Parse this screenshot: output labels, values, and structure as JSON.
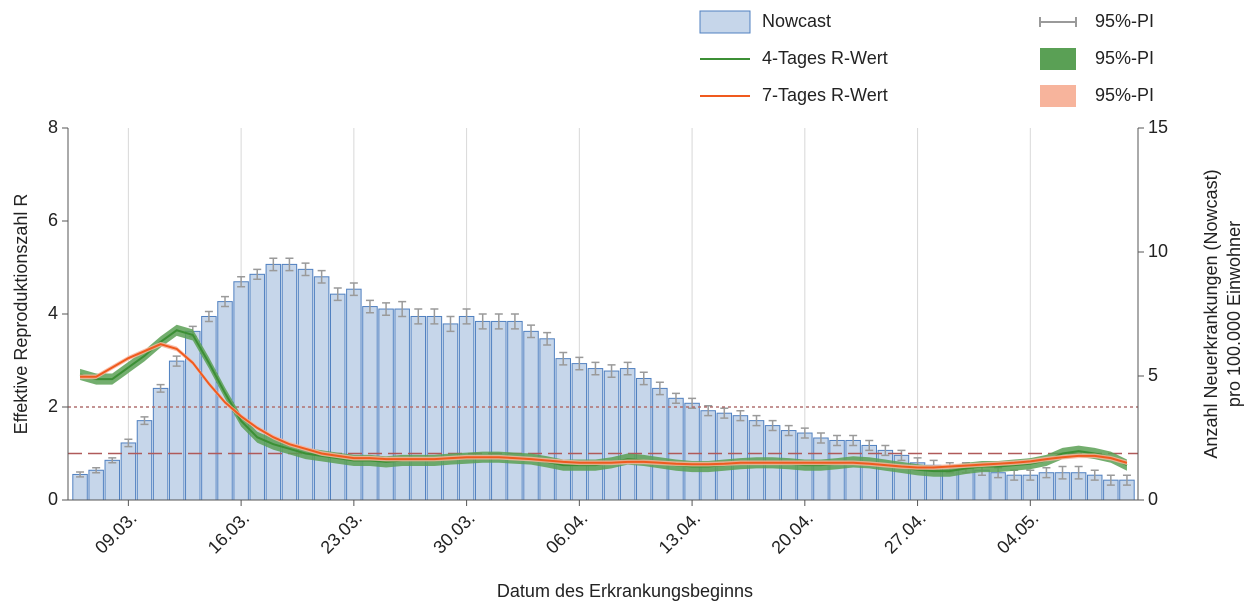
{
  "chart_data": {
    "type": "combo",
    "xlabel": "Datum des Erkrankungsbeginns",
    "ylabel": "Effektive Reproduktionszahl R",
    "y2label": [
      "Anzahl Neuerkrankungen (Nowcast)",
      "pro 100.000 Einwohner"
    ],
    "categories": [
      null,
      null,
      null,
      "09.03.",
      null,
      null,
      null,
      null,
      null,
      null,
      "16.03.",
      null,
      null,
      null,
      null,
      null,
      null,
      "23.03.",
      null,
      null,
      null,
      null,
      null,
      null,
      "30.03.",
      null,
      null,
      null,
      null,
      null,
      null,
      "06.04.",
      null,
      null,
      null,
      null,
      null,
      null,
      "13.04.",
      null,
      null,
      null,
      null,
      null,
      null,
      "20.04.",
      null,
      null,
      null,
      null,
      null,
      null,
      "27.04.",
      null,
      null,
      null,
      null,
      null,
      null,
      "04.05.",
      null,
      null,
      null,
      null,
      null,
      null
    ],
    "ylim": [
      0,
      8
    ],
    "yticks": [
      0,
      2,
      4,
      6,
      8
    ],
    "y2lim": [
      0,
      15
    ],
    "y2ticks": [
      0,
      5,
      10,
      15
    ],
    "grid": true,
    "reference_lines": [
      {
        "value": 1,
        "style": "dashed",
        "color": "#b05a5a"
      },
      {
        "value": 2,
        "style": "dotted",
        "color": "#b07070"
      }
    ],
    "series": [
      {
        "name": "Nowcast",
        "type": "bar",
        "axis": "y2",
        "color": "#c6d6ea",
        "edge_color": "#5080c0",
        "interval_name": "95%-PI",
        "interval_color": "#9a9a9a",
        "values": [
          1.03,
          1.2,
          1.6,
          2.3,
          3.2,
          4.5,
          5.6,
          6.8,
          7.4,
          8.0,
          8.8,
          9.1,
          9.5,
          9.5,
          9.3,
          9.0,
          8.3,
          8.5,
          7.8,
          7.7,
          7.7,
          7.4,
          7.4,
          7.1,
          7.4,
          7.2,
          7.2,
          7.2,
          6.8,
          6.5,
          5.7,
          5.5,
          5.3,
          5.2,
          5.3,
          4.9,
          4.5,
          4.1,
          3.9,
          3.6,
          3.5,
          3.4,
          3.2,
          3.0,
          2.8,
          2.7,
          2.5,
          2.4,
          2.4,
          2.2,
          2.0,
          1.8,
          1.5,
          1.4,
          1.3,
          1.3,
          1.2,
          1.1,
          1.0,
          1.0,
          1.1,
          1.1,
          1.1,
          1.0,
          0.8,
          0.8
        ],
        "errors": [
          0.1,
          0.1,
          0.1,
          0.15,
          0.15,
          0.15,
          0.2,
          0.2,
          0.2,
          0.2,
          0.2,
          0.2,
          0.25,
          0.25,
          0.25,
          0.25,
          0.25,
          0.25,
          0.25,
          0.25,
          0.3,
          0.3,
          0.3,
          0.3,
          0.3,
          0.3,
          0.3,
          0.3,
          0.25,
          0.25,
          0.25,
          0.25,
          0.25,
          0.25,
          0.25,
          0.25,
          0.25,
          0.2,
          0.2,
          0.2,
          0.2,
          0.2,
          0.2,
          0.2,
          0.2,
          0.2,
          0.2,
          0.2,
          0.2,
          0.2,
          0.2,
          0.2,
          0.2,
          0.2,
          0.2,
          0.2,
          0.2,
          0.2,
          0.2,
          0.2,
          0.2,
          0.25,
          0.25,
          0.2,
          0.2,
          0.2
        ]
      },
      {
        "name": "4-Tages R-Wert",
        "type": "line",
        "axis": "y",
        "color": "#3c8f35",
        "interval_name": "95%-PI",
        "interval_color": "#5aa055",
        "interval": 0.12,
        "values": [
          2.7,
          2.6,
          2.6,
          2.85,
          3.1,
          3.4,
          3.65,
          3.55,
          2.95,
          2.3,
          1.7,
          1.35,
          1.2,
          1.1,
          1.0,
          0.95,
          0.9,
          0.85,
          0.85,
          0.82,
          0.85,
          0.85,
          0.85,
          0.88,
          0.9,
          0.92,
          0.92,
          0.9,
          0.88,
          0.82,
          0.75,
          0.75,
          0.75,
          0.8,
          0.88,
          0.85,
          0.8,
          0.75,
          0.72,
          0.72,
          0.75,
          0.78,
          0.8,
          0.8,
          0.78,
          0.75,
          0.75,
          0.78,
          0.82,
          0.8,
          0.75,
          0.7,
          0.65,
          0.62,
          0.62,
          0.68,
          0.72,
          0.72,
          0.75,
          0.78,
          0.85,
          1.0,
          1.05,
          1.0,
          0.92,
          0.75
        ]
      },
      {
        "name": "7-Tages R-Wert",
        "type": "line",
        "axis": "y",
        "color": "#f05a1e",
        "interval_name": "95%-PI",
        "interval_color": "#f7b49c",
        "interval": 0.05,
        "values": [
          2.65,
          2.65,
          2.85,
          3.05,
          3.2,
          3.35,
          3.25,
          2.95,
          2.5,
          2.1,
          1.8,
          1.55,
          1.35,
          1.2,
          1.1,
          1.0,
          0.95,
          0.9,
          0.9,
          0.88,
          0.88,
          0.88,
          0.88,
          0.9,
          0.92,
          0.92,
          0.92,
          0.9,
          0.88,
          0.85,
          0.82,
          0.8,
          0.8,
          0.8,
          0.82,
          0.82,
          0.8,
          0.78,
          0.77,
          0.77,
          0.78,
          0.8,
          0.8,
          0.8,
          0.8,
          0.8,
          0.8,
          0.8,
          0.8,
          0.78,
          0.75,
          0.72,
          0.7,
          0.7,
          0.72,
          0.74,
          0.76,
          0.78,
          0.8,
          0.83,
          0.88,
          0.92,
          0.95,
          0.95,
          0.9,
          0.8
        ]
      }
    ]
  }
}
